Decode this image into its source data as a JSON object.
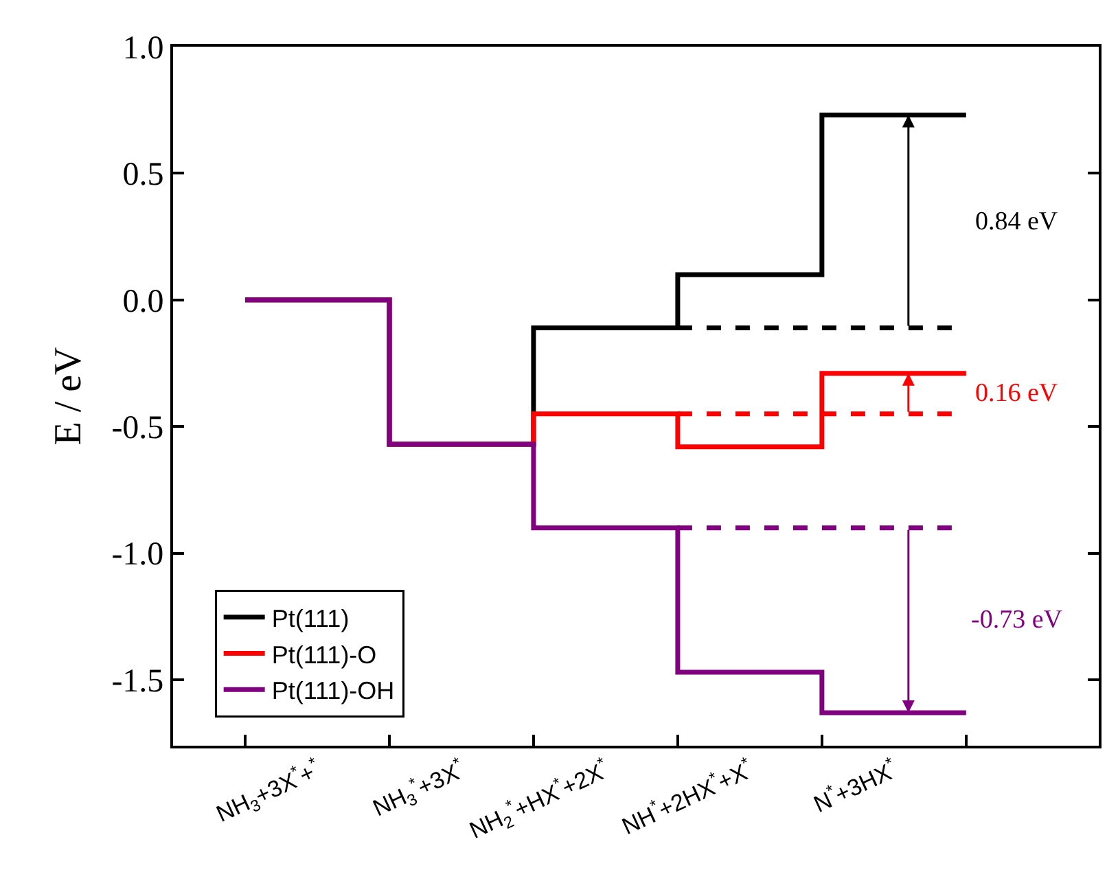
{
  "chart_data": {
    "type": "step",
    "ylabel": "E / eV",
    "categories": [
      "NH$_{3}$+3X$^{*}$+$^{*}$",
      "NH$_{3}$$^{*}$+3X$^{*}$",
      "NH$_{2}$$^{*}$+HX$^{*}$+2X$^{*}$",
      "NH$^{*}$+2HX$^{*}$+X$^{*}$",
      "N$^{*}$+3HX$^{*}$"
    ],
    "series": [
      {
        "name": "Pt(111)",
        "color": "#000000",
        "values": [
          0.0,
          -0.57,
          -0.11,
          0.1,
          0.73
        ]
      },
      {
        "name": "Pt(111)-O",
        "color": "#ff0000",
        "values": [
          0.0,
          -0.57,
          -0.45,
          -0.58,
          -0.29
        ]
      },
      {
        "name": "Pt(111)-OH",
        "color": "#800080",
        "values": [
          0.0,
          -0.57,
          -0.9,
          -1.47,
          -1.63
        ]
      },
      {
        "color": "#000000",
        "line_style": "dashed",
        "values": [
          null,
          null,
          null,
          -0.11,
          -0.11
        ]
      },
      {
        "color": "#ff0000",
        "line_style": "dashed",
        "values": [
          null,
          null,
          null,
          -0.45,
          -0.45
        ]
      },
      {
        "color": "#800080",
        "line_style": "dashed",
        "values": [
          null,
          null,
          null,
          -0.9,
          -0.9
        ]
      }
    ],
    "annotations": [
      "0.84 eV",
      "0.16 eV",
      "-0.73 eV"
    ],
    "ylim": [
      -1.76,
      1.0
    ],
    "yticks": [
      {
        "value": 1.0,
        "label": "1.0"
      },
      {
        "value": 0.5,
        "label": "0.5"
      },
      {
        "value": 0.0,
        "label": "0.0"
      },
      {
        "value": -0.5,
        "label": "-0.5"
      },
      {
        "value": -1.0,
        "label": "-1.0"
      },
      {
        "value": -1.5,
        "label": "-1.5"
      }
    ],
    "legend": "bottom left",
    "line_style": "solid"
  }
}
